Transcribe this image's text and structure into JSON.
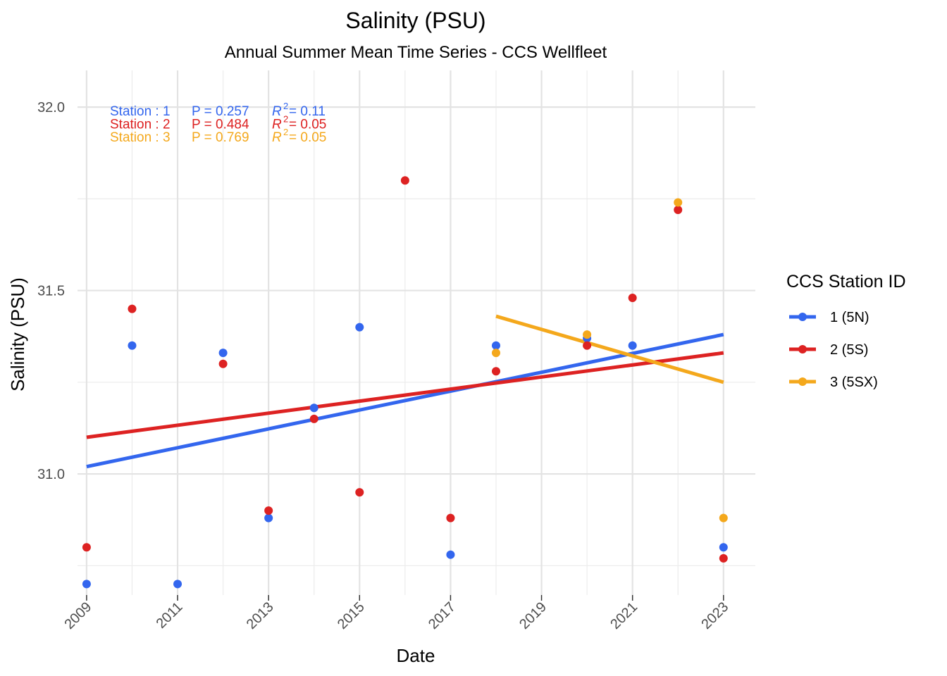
{
  "chart_data": {
    "type": "scatter",
    "title": "Salinity (PSU)",
    "subtitle": "Annual Summer Mean Time Series - CCS Wellfleet",
    "xlabel": "Date",
    "ylabel": "Salinity (PSU)",
    "xlim": [
      2008.8,
      2023.7
    ],
    "ylim": [
      30.67,
      32.1
    ],
    "x_ticks": [
      2009,
      2011,
      2013,
      2015,
      2017,
      2019,
      2021,
      2023
    ],
    "x_minor_ticks": [
      2010,
      2012,
      2014,
      2016,
      2018,
      2020,
      2022
    ],
    "y_ticks": [
      31.0,
      31.5,
      32.0
    ],
    "y_minor_ticks": [
      30.75,
      31.25,
      31.75
    ],
    "grid": true,
    "legend": {
      "title": "CCS Station ID",
      "position": "right"
    },
    "series": [
      {
        "name": "1 (5N)",
        "color": "#3366ee",
        "x": [
          2009,
          2010,
          2011,
          2012,
          2013,
          2014,
          2015,
          2017,
          2018,
          2020,
          2021,
          2023
        ],
        "y": [
          30.7,
          31.35,
          30.7,
          31.33,
          30.88,
          31.18,
          31.4,
          30.78,
          31.35,
          31.37,
          31.35,
          30.8
        ],
        "trend": {
          "x": [
            2009,
            2023
          ],
          "y": [
            31.02,
            31.38
          ]
        },
        "stats": {
          "station": "Station : 1",
          "p": "P = 0.257",
          "r2": "R",
          "r2_value": " = 0.11"
        }
      },
      {
        "name": "2 (5S)",
        "color": "#dd2222",
        "x": [
          2009,
          2010,
          2012,
          2013,
          2014,
          2015,
          2016,
          2017,
          2018,
          2020,
          2021,
          2022,
          2023
        ],
        "y": [
          30.8,
          31.45,
          31.3,
          30.9,
          31.15,
          30.95,
          31.8,
          30.88,
          31.28,
          31.35,
          31.48,
          31.72,
          30.77
        ],
        "trend": {
          "x": [
            2009,
            2023
          ],
          "y": [
            31.1,
            31.33
          ]
        },
        "stats": {
          "station": "Station : 2",
          "p": "P = 0.484",
          "r2": "R",
          "r2_value": " = 0.05"
        }
      },
      {
        "name": "3 (5SX)",
        "color": "#f4a81c",
        "x": [
          2018,
          2020,
          2022,
          2023
        ],
        "y": [
          31.33,
          31.38,
          31.74,
          30.88
        ],
        "trend": {
          "x": [
            2018,
            2023
          ],
          "y": [
            31.43,
            31.25
          ]
        },
        "stats": {
          "station": "Station : 3",
          "p": "P = 0.769",
          "r2": "R",
          "r2_value": " = 0.05"
        }
      }
    ]
  }
}
